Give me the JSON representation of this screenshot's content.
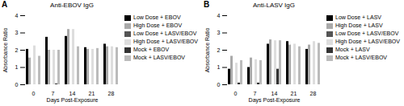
{
  "chart_data": [
    {
      "type": "bar",
      "title": "Anti-EBOV IgG",
      "xlabel": "Days Post-Exposure",
      "ylabel": "Absorbance Ratio",
      "annotations": [
        "A"
      ],
      "categories": [
        "0",
        "7",
        "14",
        "21",
        "28"
      ],
      "series": [
        {
          "name": "Low Dose + EBOV",
          "color": "#000000",
          "values": [
            2.05,
            2.75,
            2.8,
            2.15,
            2.35
          ]
        },
        {
          "name": "High Dose + EBOV",
          "color": "#aaaaaa",
          "values": [
            1.55,
            2.0,
            3.2,
            2.05,
            2.2
          ]
        },
        {
          "name": "Low Dose + LASV/EBOV",
          "color": "#555555",
          "values": [
            0.0,
            0.0,
            0.0,
            0.0,
            0.0
          ]
        },
        {
          "name": "High Dose + LASV/EBOV",
          "color": "#dddddd",
          "values": [
            2.25,
            2.0,
            3.2,
            2.05,
            2.2
          ]
        },
        {
          "name": "Mock + EBOV",
          "color": "#333333",
          "values": [
            0.0,
            0.05,
            0.0,
            0.0,
            0.0
          ]
        },
        {
          "name": "Mock + LASV/EBOV",
          "color": "#bbbbbb",
          "values": [
            1.65,
            2.0,
            2.2,
            2.1,
            2.15
          ]
        }
      ],
      "ylim": [
        0,
        4
      ],
      "yticks": [
        0,
        1,
        2,
        3,
        4
      ],
      "grid": false,
      "legend": "right"
    },
    {
      "type": "bar",
      "title": "Anti-LASV IgG",
      "xlabel": "Days Post-Exposure",
      "ylabel": "Absorbance Ratio",
      "annotations": [
        "B"
      ],
      "categories": [
        "0",
        "7",
        "14",
        "21",
        "28"
      ],
      "series": [
        {
          "name": "Low Dose + LASV",
          "color": "#000000",
          "values": [
            0.9,
            1.0,
            2.35,
            2.5,
            2.05
          ]
        },
        {
          "name": "High Dose + LASV",
          "color": "#aaaaaa",
          "values": [
            1.65,
            1.55,
            2.6,
            2.3,
            2.3
          ]
        },
        {
          "name": "Low Dose + LASV/EBOV",
          "color": "#555555",
          "values": [
            0.0,
            0.0,
            0.0,
            0.0,
            0.0
          ]
        },
        {
          "name": "High Dose + LASV/EBOV",
          "color": "#dddddd",
          "values": [
            1.25,
            1.45,
            2.55,
            2.35,
            2.5
          ]
        },
        {
          "name": "Mock + LASV",
          "color": "#333333",
          "values": [
            0.1,
            0.1,
            0.9,
            0.0,
            0.0
          ]
        },
        {
          "name": "Mock + LASV/EBOV",
          "color": "#bbbbbb",
          "values": [
            1.4,
            1.4,
            2.55,
            2.2,
            2.4
          ]
        }
      ],
      "ylim": [
        0,
        4
      ],
      "yticks": [
        0,
        1,
        2,
        3,
        4
      ],
      "grid": false,
      "legend": "right"
    }
  ]
}
